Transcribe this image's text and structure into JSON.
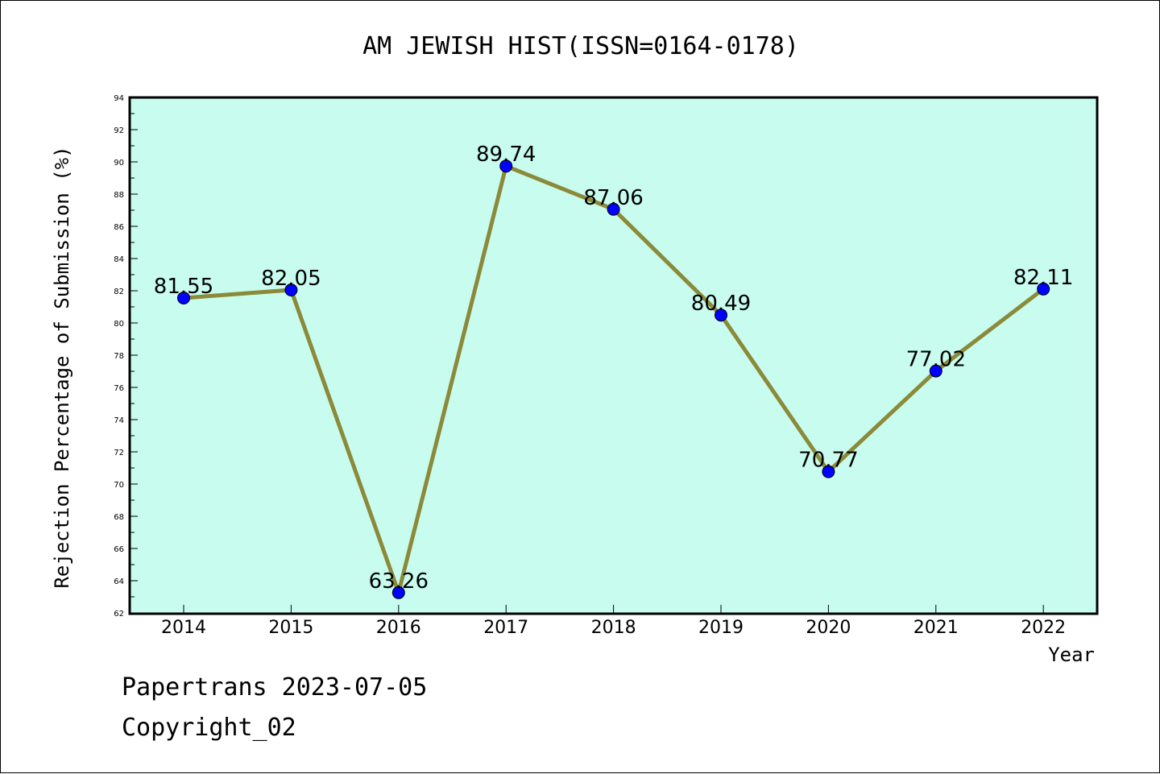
{
  "chart_data": {
    "type": "line",
    "title": "AM JEWISH HIST(ISSN=0164-0178)",
    "xlabel": "Year",
    "ylabel": "Rejection Percentage of Submission (%)",
    "categories": [
      "2014",
      "2015",
      "2016",
      "2017",
      "2018",
      "2019",
      "2020",
      "2021",
      "2022"
    ],
    "values": [
      81.55,
      82.05,
      63.26,
      89.74,
      87.06,
      80.49,
      70.77,
      77.02,
      82.11
    ],
    "data_labels": [
      "81.55",
      "82.05",
      "63.26",
      "89.74",
      "87.06",
      "80.49",
      "70.77",
      "77.02",
      "82.11"
    ],
    "ylim": [
      62,
      94
    ],
    "yticks": [
      "62",
      "64",
      "66",
      "68",
      "70",
      "72",
      "74",
      "76",
      "78",
      "80",
      "82",
      "84",
      "86",
      "88",
      "90",
      "92",
      "94"
    ],
    "line_color": "#8b8a3a",
    "marker_color": "#0000ff",
    "plot_background": "#c8fcee",
    "grid": false,
    "legend": "none"
  },
  "footer": {
    "line1": "Papertrans 2023-07-05",
    "line2": "Copyright_02"
  }
}
